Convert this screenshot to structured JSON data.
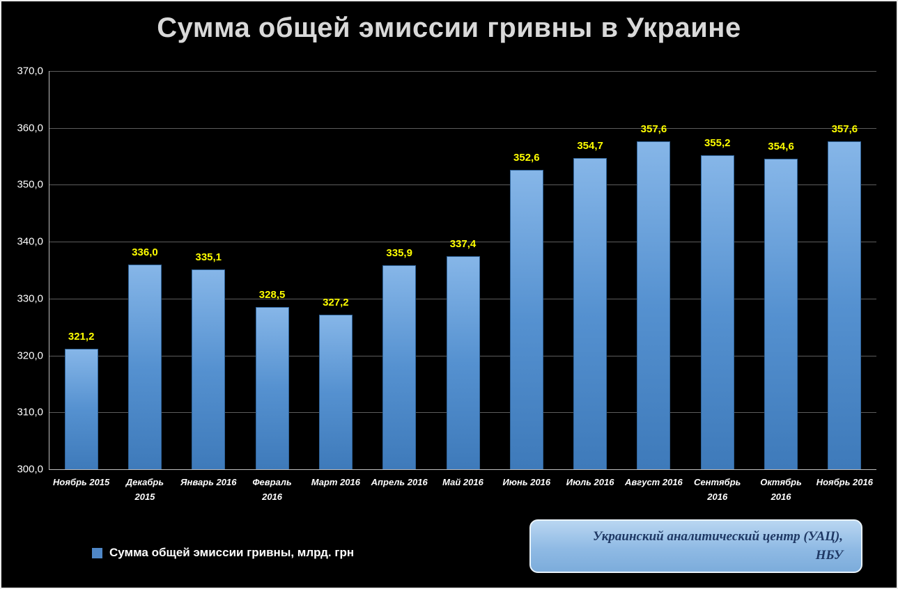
{
  "title": "Сумма общей эмиссии гривны в Украине",
  "legend": {
    "label": "Сумма общей эмиссии гривны, млрд. грн",
    "marker_color": "#4F87C7"
  },
  "source_box": {
    "line1": "Украинский аналитический центр (УАЦ),",
    "line2": "НБУ"
  },
  "chart_data": {
    "type": "bar",
    "title": "Сумма общей эмиссии гривны в Украине",
    "categories": [
      "Ноябрь 2015",
      "Декабрь\n2015",
      "Январь 2016",
      "Февраль\n2016",
      "Март 2016",
      "Апрель 2016",
      "Май 2016",
      "Июнь 2016",
      "Июль 2016",
      "Август 2016",
      "Сентябрь\n2016",
      "Октябрь\n2016",
      "Ноябрь 2016"
    ],
    "values": [
      321.2,
      336.0,
      335.1,
      328.5,
      327.2,
      335.9,
      337.4,
      352.6,
      354.7,
      357.6,
      355.2,
      354.6,
      357.6
    ],
    "value_labels": [
      "321,2",
      "336,0",
      "335,1",
      "328,5",
      "327,2",
      "335,9",
      "337,4",
      "352,6",
      "354,7",
      "357,6",
      "355,2",
      "354,6",
      "357,6"
    ],
    "xlabel": "",
    "ylabel": "",
    "ylim": [
      300,
      370
    ],
    "yticks": [
      {
        "value": 300,
        "label": "300,0"
      },
      {
        "value": 310,
        "label": "310,0"
      },
      {
        "value": 320,
        "label": "320,0"
      },
      {
        "value": 330,
        "label": "330,0"
      },
      {
        "value": 340,
        "label": "340,0"
      },
      {
        "value": 350,
        "label": "350,0"
      },
      {
        "value": 360,
        "label": "360,0"
      },
      {
        "value": 370,
        "label": "370,0"
      }
    ],
    "grid": true,
    "legend_position": "bottom-left",
    "bar_color_top": "#86B6E8",
    "bar_color_bottom": "#3E7ABA",
    "value_label_color": "#FFFF00",
    "background_color": "#000000"
  }
}
